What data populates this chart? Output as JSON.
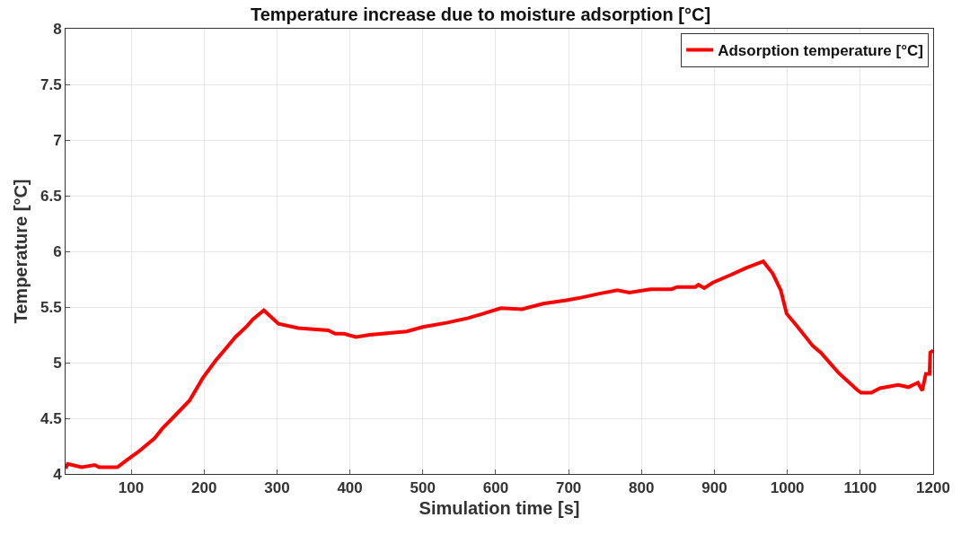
{
  "chart_data": {
    "type": "line",
    "title": "Temperature increase due to moisture adsorption [°C]",
    "xlabel": "Simulation time [s]",
    "ylabel": "Temperature [°C]",
    "series": [
      {
        "name": "Adsorption temperature [°C]",
        "color": "#ff0000",
        "x": [
          10,
          13,
          32,
          50,
          56,
          81,
          93,
          110,
          132,
          143,
          155,
          180,
          198,
          216,
          243,
          259,
          267,
          282,
          302,
          329,
          370,
          380,
          392,
          408,
          427,
          478,
          500,
          534,
          562,
          583,
          607,
          636,
          665,
          697,
          714,
          742,
          767,
          783,
          812,
          841,
          849,
          874,
          878,
          886,
          898,
          923,
          943,
          967,
          980,
          991,
          999,
          1013,
          1035,
          1046,
          1070,
          1095,
          1101,
          1115,
          1127,
          1152,
          1166,
          1179,
          1185,
          1190,
          1195,
          1196,
          1200
        ],
        "values": [
          4.05,
          4.09,
          4.06,
          4.08,
          4.06,
          4.06,
          4.12,
          4.2,
          4.32,
          4.41,
          4.49,
          4.66,
          4.86,
          5.02,
          5.23,
          5.33,
          5.39,
          5.47,
          5.35,
          5.31,
          5.29,
          5.26,
          5.26,
          5.23,
          5.25,
          5.28,
          5.32,
          5.36,
          5.4,
          5.44,
          5.49,
          5.48,
          5.53,
          5.56,
          5.58,
          5.62,
          5.65,
          5.63,
          5.66,
          5.66,
          5.68,
          5.68,
          5.7,
          5.67,
          5.72,
          5.79,
          5.85,
          5.91,
          5.8,
          5.65,
          5.44,
          5.33,
          5.15,
          5.09,
          4.91,
          4.76,
          4.73,
          4.73,
          4.77,
          4.8,
          4.78,
          4.82,
          4.75,
          4.9,
          4.9,
          5.09,
          5.11
        ]
      }
    ],
    "xlim": [
      10,
      1200
    ],
    "xticks": [
      100,
      200,
      300,
      400,
      500,
      600,
      700,
      800,
      900,
      1000,
      1100,
      1200
    ],
    "ylim": [
      4,
      8
    ],
    "yticks": [
      4,
      4.5,
      5,
      5.5,
      6,
      6.5,
      7,
      7.5,
      8
    ],
    "grid": true,
    "legend": "top right",
    "marker": "none",
    "line_style": "solid"
  }
}
